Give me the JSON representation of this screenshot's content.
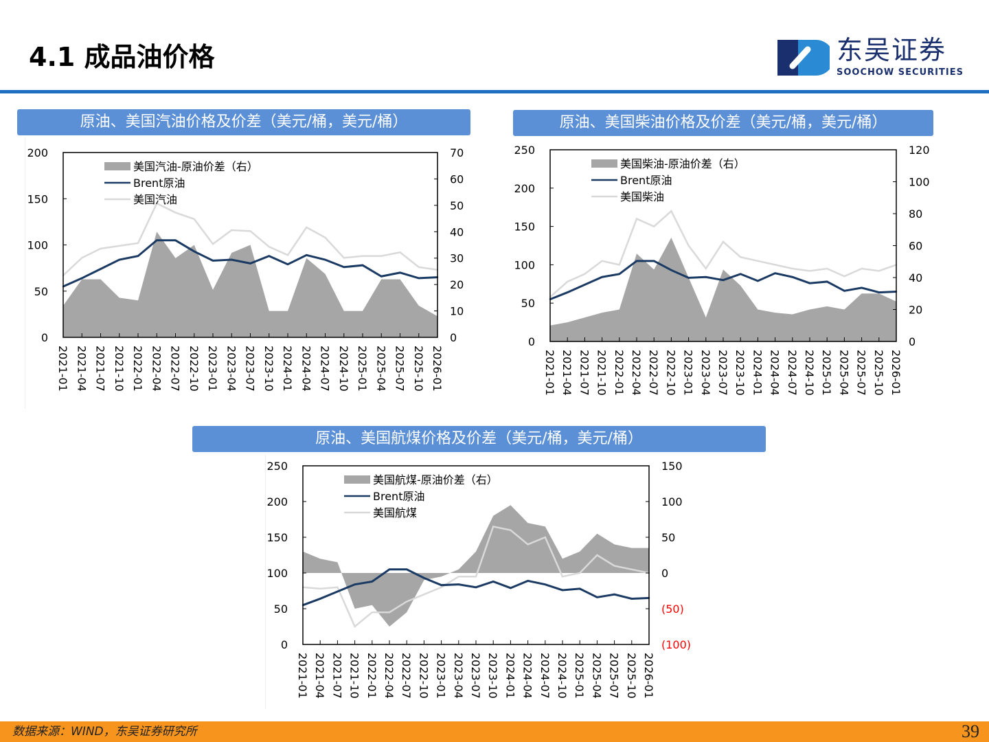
{
  "header": {
    "title": "4.1 成品油价格",
    "logo_cn": "东吴证券",
    "logo_en": "SOOCHOW SECURITIES"
  },
  "footer": {
    "source": "数据来源：WIND，东吴证券研究所",
    "page": "39"
  },
  "colors": {
    "spread": "#a6a6a6",
    "brent": "#1a3a63",
    "product": "#d9d9d9",
    "header_bar": "#5b8fd6",
    "negative_tick": "#ff0000"
  },
  "chart_data": [
    {
      "type": "area+line",
      "title": "原油、美国汽油价格及价差（美元/桶，美元/桶）",
      "categories": [
        "2021-01",
        "2021-04",
        "2021-07",
        "2021-10",
        "2022-01",
        "2022-04",
        "2022-07",
        "2022-10",
        "2023-01",
        "2023-04",
        "2023-07",
        "2023-10",
        "2024-01",
        "2024-04",
        "2024-07",
        "2024-10",
        "2025-01",
        "2025-04",
        "2025-07",
        "2025-10",
        "2026-01"
      ],
      "ylim": [
        0,
        200
      ],
      "yticks": [
        "0",
        "50",
        "100",
        "150",
        "200"
      ],
      "y2lim": [
        0,
        70
      ],
      "y2ticks": [
        "0",
        "10",
        "20",
        "30",
        "40",
        "50",
        "60",
        "70"
      ],
      "legend": "top-left",
      "series": [
        {
          "name": "美国汽油-原油价差（右）",
          "axis": "right",
          "kind": "area",
          "values": [
            12,
            22,
            22,
            15,
            14,
            40,
            30,
            35,
            18,
            32,
            35,
            10,
            10,
            30,
            24,
            10,
            10,
            22,
            22,
            12,
            8
          ]
        },
        {
          "name": "Brent原油",
          "axis": "left",
          "kind": "line",
          "values": [
            55,
            64,
            74,
            84,
            88,
            105,
            105,
            93,
            83,
            84,
            80,
            88,
            79,
            89,
            84,
            76,
            78,
            66,
            70,
            64,
            65
          ]
        },
        {
          "name": "美国汽油",
          "axis": "left",
          "kind": "line",
          "values": [
            67,
            86,
            96,
            99,
            102,
            145,
            135,
            128,
            101,
            116,
            115,
            98,
            89,
            119,
            108,
            86,
            88,
            88,
            92,
            76,
            73
          ]
        }
      ]
    },
    {
      "type": "area+line",
      "title": "原油、美国柴油价格及价差（美元/桶，美元/桶）",
      "categories": [
        "2021-01",
        "2021-04",
        "2021-07",
        "2021-10",
        "2022-01",
        "2022-04",
        "2022-07",
        "2022-10",
        "2023-01",
        "2023-04",
        "2023-07",
        "2023-10",
        "2024-01",
        "2024-04",
        "2024-07",
        "2024-10",
        "2025-01",
        "2025-04",
        "2025-07",
        "2025-10",
        "2026-01"
      ],
      "ylim": [
        0,
        250
      ],
      "yticks": [
        "0",
        "50",
        "100",
        "150",
        "200",
        "250"
      ],
      "y2lim": [
        0,
        120
      ],
      "y2ticks": [
        "0",
        "20",
        "40",
        "60",
        "80",
        "100",
        "120"
      ],
      "legend": "top-left",
      "series": [
        {
          "name": "美国柴油-原油价差（右）",
          "axis": "right",
          "kind": "area",
          "values": [
            10,
            12,
            15,
            18,
            20,
            55,
            45,
            65,
            40,
            15,
            45,
            35,
            20,
            18,
            17,
            20,
            22,
            20,
            30,
            30,
            25
          ]
        },
        {
          "name": "Brent原油",
          "axis": "left",
          "kind": "line",
          "values": [
            55,
            64,
            74,
            84,
            88,
            105,
            105,
            93,
            83,
            84,
            80,
            88,
            79,
            89,
            84,
            76,
            78,
            66,
            70,
            64,
            65
          ]
        },
        {
          "name": "美国柴油",
          "axis": "left",
          "kind": "line",
          "values": [
            58,
            78,
            88,
            105,
            100,
            160,
            150,
            170,
            125,
            95,
            130,
            110,
            105,
            100,
            95,
            92,
            95,
            85,
            95,
            92,
            100
          ]
        }
      ]
    },
    {
      "type": "area+line",
      "title": "原油、美国航煤价格及价差（美元/桶，美元/桶）",
      "categories": [
        "2021-01",
        "2021-04",
        "2021-07",
        "2021-10",
        "2022-01",
        "2022-04",
        "2022-07",
        "2022-10",
        "2023-01",
        "2023-04",
        "2023-07",
        "2023-10",
        "2024-01",
        "2024-04",
        "2024-07",
        "2024-10",
        "2025-01",
        "2025-04",
        "2025-07",
        "2025-10",
        "2026-01"
      ],
      "ylim": [
        0,
        250
      ],
      "yticks": [
        "0",
        "50",
        "100",
        "150",
        "200",
        "250"
      ],
      "y2lim": [
        -100,
        150
      ],
      "y2ticks": [
        "(100)",
        "(50)",
        "0",
        "50",
        "100",
        "150"
      ],
      "legend": "top-left",
      "series": [
        {
          "name": "美国航煤-原油价差（右）",
          "axis": "right",
          "kind": "area",
          "values": [
            30,
            20,
            15,
            -50,
            -45,
            -75,
            -55,
            -10,
            -5,
            5,
            30,
            80,
            95,
            70,
            65,
            20,
            30,
            55,
            40,
            35,
            35
          ]
        },
        {
          "name": "Brent原油",
          "axis": "left",
          "kind": "line",
          "values": [
            55,
            64,
            74,
            84,
            88,
            105,
            105,
            93,
            83,
            84,
            80,
            88,
            79,
            89,
            84,
            76,
            78,
            66,
            70,
            64,
            65
          ]
        },
        {
          "name": "美国航煤",
          "axis": "left",
          "kind": "line",
          "values": [
            80,
            78,
            80,
            25,
            45,
            45,
            60,
            70,
            80,
            95,
            95,
            165,
            160,
            140,
            150,
            95,
            100,
            125,
            110,
            105,
            100
          ]
        }
      ]
    }
  ]
}
